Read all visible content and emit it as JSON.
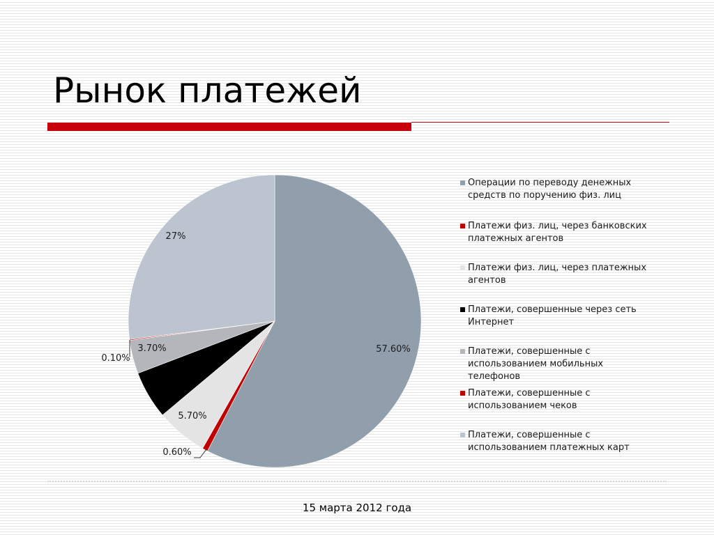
{
  "slide": {
    "title": "Рынок платежей",
    "date": "15 марта 2012 года"
  },
  "chart_data": {
    "type": "pie",
    "legend_position": "right",
    "start_angle": "12 o'clock, clockwise",
    "slices": [
      {
        "label": "Операции по переводу денежных средств по поручению физ. лиц",
        "value": 57.6,
        "value_label": "57.60%",
        "color": "#919fac"
      },
      {
        "label": "Платежи физ. лиц, через банковских платежных агентов",
        "value": 0.6,
        "value_label": "0.60%",
        "color": "#c00000"
      },
      {
        "label": "Платежи физ. лиц, через платежных агентов",
        "value": 5.7,
        "value_label": "5.70%",
        "color": "#e4e4e4"
      },
      {
        "label": "Платежи, совершенные через сеть Интернет",
        "value": 5.3,
        "value_label": "",
        "color": "#000000"
      },
      {
        "label": "Платежи, совершенные с использованием мобильных телефонов",
        "value": 3.7,
        "value_label": "3.70%",
        "color": "#b3b7bc"
      },
      {
        "label": "Платежи, совершенные с использованием чеков",
        "value": 0.1,
        "value_label": "0.10%",
        "color": "#c00000"
      },
      {
        "label": "Платежи, совершенные с использованием платежных карт",
        "value": 27,
        "value_label": "27%",
        "color": "#bcc4d0"
      }
    ]
  }
}
